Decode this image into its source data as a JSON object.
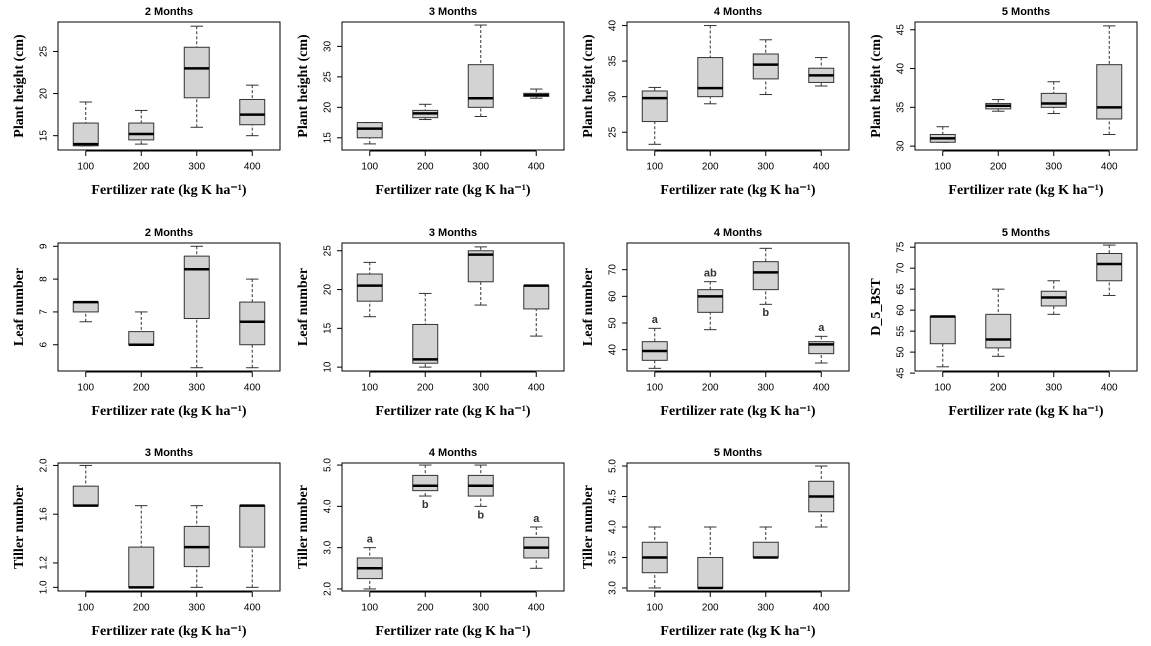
{
  "chart_data": [
    {
      "type": "box",
      "title": "2 Months",
      "x_label": "Fertilizer rate (kg K ha⁻¹)",
      "y_label": "Plant height (cm)",
      "color": "#d3d3d3",
      "categories": [
        "100",
        "200",
        "300",
        "400"
      ],
      "ylim": [
        13.3,
        28.5
      ],
      "yticks": [
        15,
        20,
        25
      ],
      "boxes": [
        {
          "min": 13.8,
          "q1": 13.8,
          "median": 14,
          "q3": 16.5,
          "max": 19
        },
        {
          "min": 14,
          "q1": 14.5,
          "median": 15.2,
          "q3": 16.5,
          "max": 18
        },
        {
          "min": 16,
          "q1": 19.5,
          "median": 23,
          "q3": 25.5,
          "max": 28
        },
        {
          "min": 15,
          "q1": 16.3,
          "median": 17.5,
          "q3": 19.3,
          "max": 21
        }
      ]
    },
    {
      "type": "box",
      "title": "3 Months",
      "x_label": "Fertilizer rate (kg K ha⁻¹)",
      "y_label": "Plant height (cm)",
      "color": "#d3d3d3",
      "categories": [
        "100",
        "200",
        "300",
        "400"
      ],
      "ylim": [
        13,
        34
      ],
      "yticks": [
        15,
        20,
        25,
        30
      ],
      "boxes": [
        {
          "min": 14,
          "q1": 15,
          "median": 16.5,
          "q3": 17.5,
          "max": 17.5
        },
        {
          "min": 18,
          "q1": 18.3,
          "median": 19,
          "q3": 19.5,
          "max": 20.5
        },
        {
          "min": 18.5,
          "q1": 20,
          "median": 21.5,
          "q3": 27,
          "max": 33.5
        },
        {
          "min": 21.5,
          "q1": 21.8,
          "median": 22,
          "q3": 22.3,
          "max": 23
        }
      ]
    },
    {
      "type": "box",
      "title": "4 Months",
      "x_label": "Fertilizer rate (kg K ha⁻¹)",
      "y_label": "Plant height (cm)",
      "color": "#d3d3d3",
      "categories": [
        "100",
        "200",
        "300",
        "400"
      ],
      "ylim": [
        22.5,
        40.5
      ],
      "yticks": [
        25,
        30,
        35,
        40
      ],
      "boxes": [
        {
          "min": 23.3,
          "q1": 26.5,
          "median": 29.8,
          "q3": 30.8,
          "max": 31.3
        },
        {
          "min": 29,
          "q1": 30,
          "median": 31.2,
          "q3": 35.5,
          "max": 40
        },
        {
          "min": 30.3,
          "q1": 32.5,
          "median": 34.5,
          "q3": 36,
          "max": 38
        },
        {
          "min": 31.5,
          "q1": 32,
          "median": 33,
          "q3": 34,
          "max": 35.5
        }
      ]
    },
    {
      "type": "box",
      "title": "5 Months",
      "x_label": "Fertilizer rate (kg K ha⁻¹)",
      "y_label": "Plant height (cm)",
      "color": "#d3d3d3",
      "categories": [
        "100",
        "200",
        "300",
        "400"
      ],
      "ylim": [
        29.5,
        46
      ],
      "yticks": [
        30,
        35,
        40,
        45
      ],
      "boxes": [
        {
          "min": 30.5,
          "q1": 30.5,
          "median": 31,
          "q3": 31.5,
          "max": 32.5
        },
        {
          "min": 34.5,
          "q1": 34.8,
          "median": 35.2,
          "q3": 35.5,
          "max": 36
        },
        {
          "min": 34.2,
          "q1": 35,
          "median": 35.5,
          "q3": 36.8,
          "max": 38.3
        },
        {
          "min": 31.5,
          "q1": 33.5,
          "median": 35,
          "q3": 40.5,
          "max": 45.5
        }
      ]
    },
    {
      "type": "box",
      "title": "2 Months",
      "x_label": "Fertilizer rate (kg K ha⁻¹)",
      "y_label": "Leaf number",
      "color": "#d3d3d3",
      "categories": [
        "100",
        "200",
        "300",
        "400"
      ],
      "ylim": [
        5.2,
        9.1
      ],
      "yticks": [
        6,
        7,
        8,
        9
      ],
      "boxes": [
        {
          "min": 6.7,
          "q1": 7,
          "median": 7.3,
          "q3": 7.3,
          "max": 7.3
        },
        {
          "min": 6,
          "q1": 6,
          "median": 6,
          "q3": 6.4,
          "max": 7
        },
        {
          "min": 5.3,
          "q1": 6.8,
          "median": 8.3,
          "q3": 8.7,
          "max": 9
        },
        {
          "min": 5.3,
          "q1": 6,
          "median": 6.7,
          "q3": 7.3,
          "max": 8
        }
      ]
    },
    {
      "type": "box",
      "title": "3 Months",
      "x_label": "Fertilizer rate (kg K ha⁻¹)",
      "y_label": "Leaf number",
      "color": "#d3d3d3",
      "categories": [
        "100",
        "200",
        "300",
        "400"
      ],
      "ylim": [
        9.5,
        26
      ],
      "yticks": [
        10,
        15,
        20,
        25
      ],
      "boxes": [
        {
          "min": 16.5,
          "q1": 18.5,
          "median": 20.5,
          "q3": 22,
          "max": 23.5
        },
        {
          "min": 10,
          "q1": 10.5,
          "median": 11,
          "q3": 15.5,
          "max": 19.5
        },
        {
          "min": 18,
          "q1": 21,
          "median": 24.5,
          "q3": 25,
          "max": 25.5
        },
        {
          "min": 14,
          "q1": 17.5,
          "median": 20.5,
          "q3": 20.5,
          "max": 20.5
        }
      ]
    },
    {
      "type": "box",
      "title": "4 Months",
      "x_label": "Fertilizer rate (kg K ha⁻¹)",
      "y_label": "Leaf number",
      "color": "#d3d3d3",
      "categories": [
        "100",
        "200",
        "300",
        "400"
      ],
      "ylim": [
        32,
        80
      ],
      "yticks": [
        40,
        50,
        60,
        70
      ],
      "letters": [
        "a",
        "ab",
        "b",
        "a"
      ],
      "boxes": [
        {
          "min": 33,
          "q1": 36,
          "median": 39.5,
          "q3": 43,
          "max": 48
        },
        {
          "min": 47.5,
          "q1": 54,
          "median": 60,
          "q3": 62.5,
          "max": 65.5
        },
        {
          "min": 57,
          "q1": 62.5,
          "median": 69,
          "q3": 73,
          "max": 78
        },
        {
          "min": 35,
          "q1": 38.5,
          "median": 42,
          "q3": 43,
          "max": 45
        }
      ]
    },
    {
      "type": "box",
      "title": "5 Months",
      "x_label": "Fertilizer rate (kg K ha⁻¹)",
      "y_label": "D_5_BST",
      "color": "#d3d3d3",
      "categories": [
        "100",
        "200",
        "300",
        "400"
      ],
      "ylim": [
        45.5,
        76
      ],
      "yticks": [
        45,
        50,
        55,
        60,
        65,
        70,
        75
      ],
      "boxes": [
        {
          "min": 46.5,
          "q1": 52,
          "median": 58.5,
          "q3": 58.5,
          "max": 58.5
        },
        {
          "min": 49,
          "q1": 51,
          "median": 53,
          "q3": 59,
          "max": 65
        },
        {
          "min": 59,
          "q1": 61,
          "median": 63,
          "q3": 64.5,
          "max": 67
        },
        {
          "min": 63.5,
          "q1": 67,
          "median": 71,
          "q3": 73.5,
          "max": 75.5
        }
      ]
    },
    {
      "type": "box",
      "title": "3 Months",
      "x_label": "Fertilizer rate (kg K ha⁻¹)",
      "y_label": "Tiller number",
      "color": "#d3d3d3",
      "categories": [
        "100",
        "200",
        "300",
        "400"
      ],
      "ylim": [
        0.97,
        2.02
      ],
      "yticks": [
        {
          "value": 1,
          "label": "1.0"
        },
        1.2,
        1.6,
        {
          "value": 2,
          "label": "2.0"
        }
      ],
      "boxes": [
        {
          "min": 1.67,
          "q1": 1.67,
          "median": 1.67,
          "q3": 1.83,
          "max": 2
        },
        {
          "min": 1,
          "q1": 1,
          "median": 1,
          "q3": 1.33,
          "max": 1.67
        },
        {
          "min": 1,
          "q1": 1.17,
          "median": 1.33,
          "q3": 1.5,
          "max": 1.67
        },
        {
          "min": 1,
          "q1": 1.33,
          "median": 1.67,
          "q3": 1.67,
          "max": 1.67
        }
      ]
    },
    {
      "type": "box",
      "title": "4 Months",
      "x_label": "Fertilizer rate (kg K ha⁻¹)",
      "y_label": "Tiller number",
      "color": "#d3d3d3",
      "categories": [
        "100",
        "200",
        "300",
        "400"
      ],
      "ylim": [
        1.95,
        5.05
      ],
      "yticks": [
        {
          "value": 2,
          "label": "2.0"
        },
        {
          "value": 3,
          "label": "3.0"
        },
        {
          "value": 4,
          "label": "4.0"
        },
        {
          "value": 5,
          "label": "5.0"
        }
      ],
      "letters": [
        "a",
        "b",
        "b",
        "a"
      ],
      "boxes": [
        {
          "min": 2,
          "q1": 2.25,
          "median": 2.5,
          "q3": 2.75,
          "max": 3
        },
        {
          "min": 4.25,
          "q1": 4.38,
          "median": 4.5,
          "q3": 4.75,
          "max": 5
        },
        {
          "min": 4,
          "q1": 4.25,
          "median": 4.5,
          "q3": 4.75,
          "max": 5
        },
        {
          "min": 2.5,
          "q1": 2.75,
          "median": 3,
          "q3": 3.25,
          "max": 3.5
        }
      ]
    },
    {
      "type": "box",
      "title": "5 Months",
      "x_label": "Fertilizer rate (kg K ha⁻¹)",
      "y_label": "Tiller number",
      "color": "#d3d3d3",
      "categories": [
        "100",
        "200",
        "300",
        "400"
      ],
      "ylim": [
        2.95,
        5.05
      ],
      "yticks": [
        {
          "value": 3,
          "label": "3.0"
        },
        3.5,
        {
          "value": 4,
          "label": "4.0"
        },
        4.5,
        {
          "value": 5,
          "label": "5.0"
        }
      ],
      "boxes": [
        {
          "min": 3,
          "q1": 3.25,
          "median": 3.5,
          "q3": 3.75,
          "max": 4
        },
        {
          "min": 3,
          "q1": 3,
          "median": 3,
          "q3": 3.5,
          "max": 4
        },
        {
          "min": 3.5,
          "q1": 3.5,
          "median": 3.5,
          "q3": 3.75,
          "max": 4
        },
        {
          "min": 4,
          "q1": 4.25,
          "median": 4.5,
          "q3": 4.75,
          "max": 5
        }
      ]
    }
  ]
}
